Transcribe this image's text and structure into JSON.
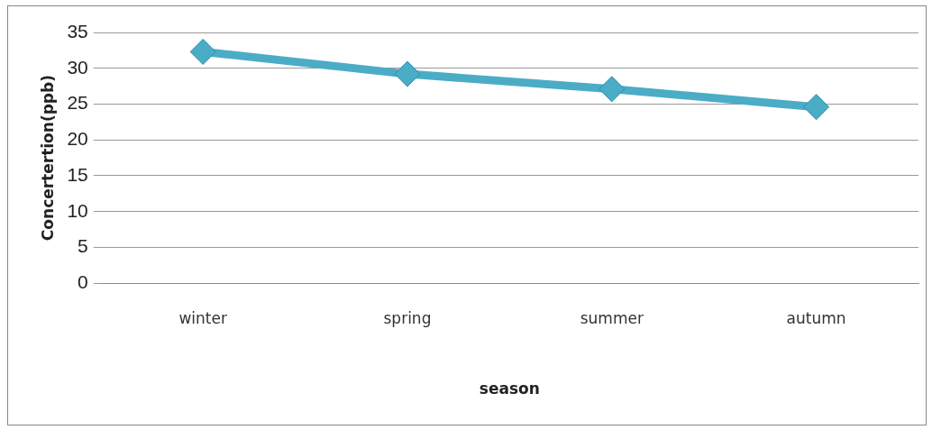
{
  "chart_data": {
    "type": "line",
    "xlabel": "season",
    "ylabel": "Concertertion(ppb)",
    "categories": [
      "winter",
      "spring",
      "summer",
      "autumn"
    ],
    "series": [
      {
        "color": "#4bacc6",
        "values": [
          32.3,
          29.2,
          27.1,
          24.6
        ]
      }
    ],
    "ylim": [
      0,
      35
    ],
    "yticks": [
      0,
      5,
      10,
      15,
      20,
      25,
      30,
      35
    ],
    "grid": "y",
    "legend": false,
    "marker": "diamond",
    "line_style": "solid"
  }
}
